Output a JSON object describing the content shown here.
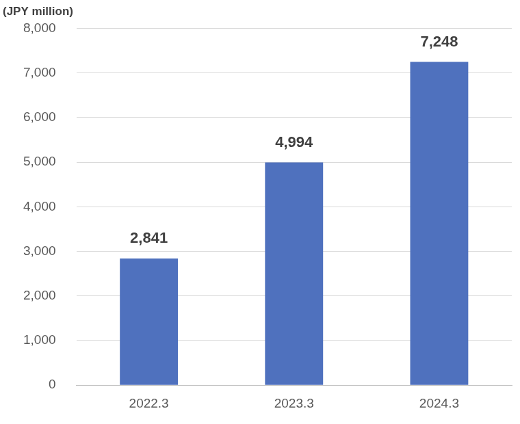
{
  "chart_data": {
    "type": "bar",
    "y_label": "(JPY million)",
    "categories": [
      "2022.3",
      "2023.3",
      "2024.3"
    ],
    "values": [
      2841,
      4994,
      7248
    ],
    "value_labels": [
      "2,841",
      "4,994",
      "7,248"
    ],
    "color": "#4f71be",
    "ylim": [
      0,
      8000
    ],
    "yticks": [
      0,
      {
        "value": 1000,
        "label": "1,000"
      },
      {
        "value": 2000,
        "label": "2,000"
      },
      {
        "value": 3000,
        "label": "3,000"
      },
      {
        "value": 4000,
        "label": "4,000"
      },
      {
        "value": 5000,
        "label": "5,000"
      },
      {
        "value": 6000,
        "label": "6,000"
      },
      {
        "value": 7000,
        "label": "7,000"
      },
      {
        "value": 8000,
        "label": "8,000"
      }
    ],
    "grid": true,
    "data_labels": true
  }
}
